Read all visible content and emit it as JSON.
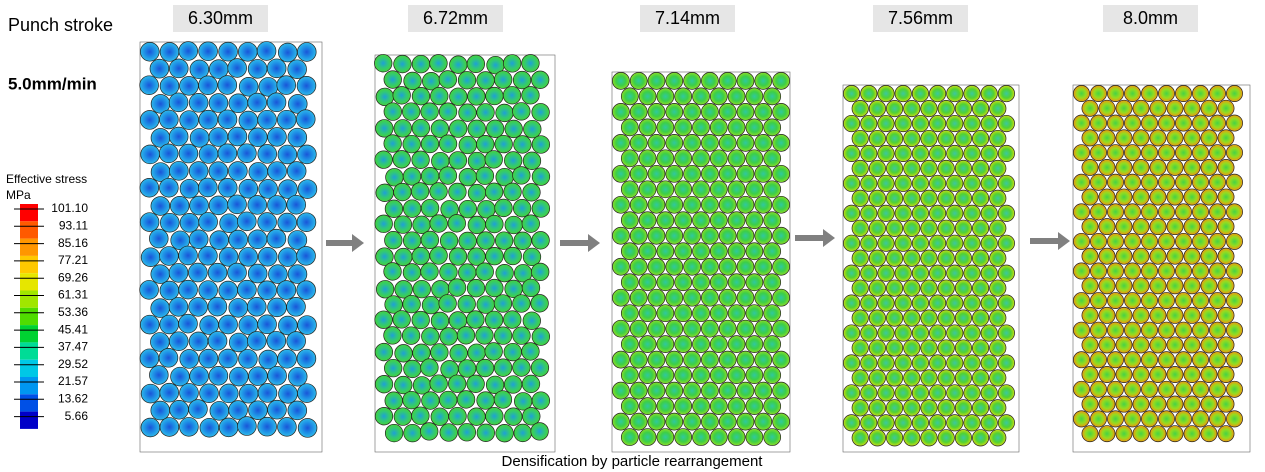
{
  "header": {
    "row_label": "Punch stroke",
    "rate": "5.0mm/min"
  },
  "strokes": [
    "6.30mm",
    "6.72mm",
    "7.14mm",
    "7.56mm",
    "8.0mm"
  ],
  "legend": {
    "title": "Effective stress",
    "unit": "MPa",
    "labels": [
      "101.10",
      "93.11",
      "85.16",
      "77.21",
      "69.26",
      "61.31",
      "53.36",
      "45.41",
      "37.47",
      "29.52",
      "21.57",
      "13.62",
      "5.66"
    ],
    "colors": [
      "#ff0000",
      "#ff5a00",
      "#ff9600",
      "#ffc800",
      "#e6e600",
      "#a0e600",
      "#50dc00",
      "#00d232",
      "#00dc96",
      "#00c8e6",
      "#0096f0",
      "#0050e6",
      "#0000c8"
    ]
  },
  "caption": "Densification by particle rearrangement"
}
